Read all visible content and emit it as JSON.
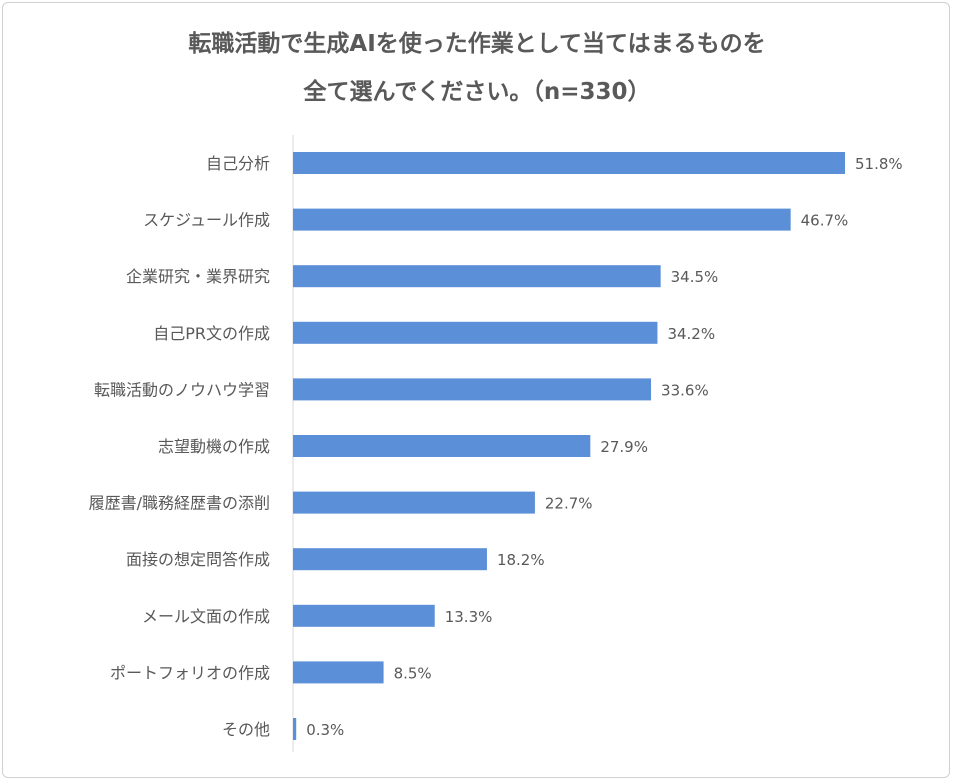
{
  "chart_data": {
    "type": "bar",
    "orientation": "horizontal",
    "title": "転職活動で生成AIを使った作業として当てはまるものを",
    "subtitle": "全て選んでください。（n=330）",
    "categories": [
      "自己分析",
      "スケジュール作成",
      "企業研究・業界研究",
      "自己PR文の作成",
      "転職活動のノウハウ学習",
      "志望動機の作成",
      "履歴書/職務経歴書の添削",
      "面接の想定問答作成",
      "メール文面の作成",
      "ポートフォリオの作成",
      "その他"
    ],
    "values": [
      51.8,
      46.7,
      34.5,
      34.2,
      33.6,
      27.9,
      22.7,
      18.2,
      13.3,
      8.5,
      0.3
    ],
    "value_labels": [
      "51.8%",
      "46.7%",
      "34.5%",
      "34.2%",
      "33.6%",
      "27.9%",
      "22.7%",
      "18.2%",
      "13.3%",
      "8.5%",
      "0.3%"
    ],
    "unit": "%",
    "xlabel": "",
    "ylabel": "",
    "grid": false,
    "legend": "none",
    "bar_color": "#5B8FD7"
  }
}
